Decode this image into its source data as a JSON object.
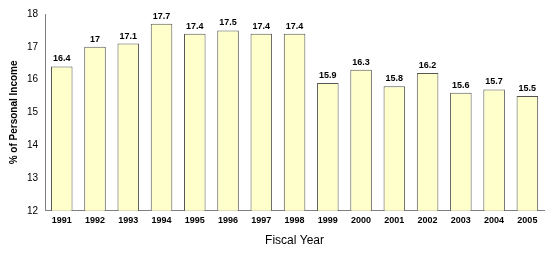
{
  "chart_data": {
    "type": "bar",
    "x_label": "Fiscal Year",
    "y_label": "% of Personal Income",
    "categories": [
      "1991",
      "1992",
      "1993",
      "1994",
      "1995",
      "1996",
      "1997",
      "1998",
      "1999",
      "2000",
      "2001",
      "2002",
      "2003",
      "2004",
      "2005"
    ],
    "values": [
      16.4,
      17,
      17.1,
      17.7,
      17.4,
      17.5,
      17.4,
      17.4,
      15.9,
      16.3,
      15.8,
      16.2,
      15.6,
      15.7,
      15.5
    ],
    "color": "#ffffcc",
    "ylim": [
      12,
      18
    ],
    "yticks": [
      12,
      13,
      14,
      15,
      16,
      17,
      18
    ],
    "grid": false,
    "data_labels": true
  }
}
